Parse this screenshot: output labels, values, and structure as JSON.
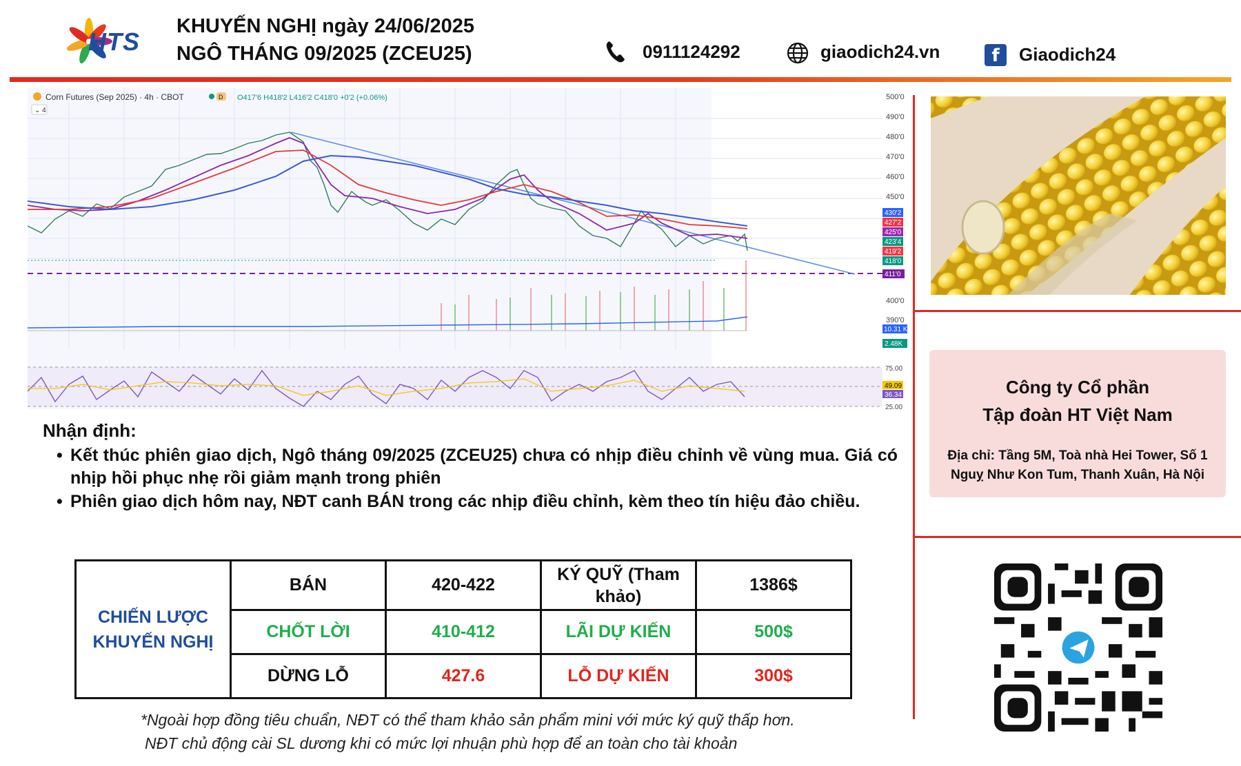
{
  "header": {
    "logo_text": "HTS",
    "title_line1": "KHUYẾN NGHỊ ngày 24/06/2025",
    "title_line2": "NGÔ THÁNG 09/2025 (ZCEU25)",
    "phone": "0911124292",
    "website": "giaodich24.vn",
    "facebook": "Giaodich24",
    "icons": [
      "phone-icon",
      "globe-icon",
      "facebook-icon"
    ]
  },
  "chart": {
    "symbol_label": "Corn Futures (Sep 2025) · 4h · CBOT",
    "ohlc_text": "O417'6 H418'2 L416'2 C418'0 +0'2 (+0.06%)",
    "price_axis_ticks": [
      "500'0",
      "490'0",
      "480'0",
      "470'0",
      "460'0",
      "450'0",
      "400'0",
      "390'0"
    ],
    "price_badges": [
      {
        "text": "430'2",
        "color": "#2962ff"
      },
      {
        "text": "427'2",
        "color": "#f23645"
      },
      {
        "text": "425'0",
        "color": "#9c27b0"
      },
      {
        "text": "423'4",
        "color": "#089981"
      },
      {
        "text": "419'2",
        "color": "#f23645"
      },
      {
        "text": "418'0",
        "color": "#089981"
      },
      {
        "text": "411'0",
        "color": "#7b1fa2"
      }
    ],
    "volume_badges": [
      {
        "text": "10.31 K",
        "color": "#2962ff"
      },
      {
        "text": "2.48K",
        "color": "#089981"
      }
    ],
    "rsi_axis_ticks": [
      "75.00",
      "25.00"
    ],
    "rsi_badges": [
      {
        "text": "49.09",
        "color": "#f7c600"
      },
      {
        "text": "36.34",
        "color": "#7e57c2"
      }
    ]
  },
  "analysis": {
    "title": "Nhận định:",
    "bullets": [
      "Kết thúc phiên giao dịch, Ngô tháng 09/2025 (ZCEU25) chưa có nhịp điều chỉnh về vùng mua. Giá có nhịp hồi phục nhẹ rồi giảm mạnh trong phiên",
      "Phiên giao dịch hôm nay, NĐT canh BÁN trong các nhịp điều chỉnh, kèm theo tín hiệu đảo chiều."
    ]
  },
  "strategy": {
    "header_cell": "CHIẾN LƯỢC KHUYẾN NGHỊ",
    "rows": [
      {
        "action": "BÁN",
        "price": "420-422",
        "label": "KÝ QUỸ (Tham khảo)",
        "value": "1386$"
      },
      {
        "action": "CHỐT LỜI",
        "price": "410-412",
        "label": "LÃI DỰ KIẾN",
        "value": "500$"
      },
      {
        "action": "DỪNG LỖ",
        "price": "427.6",
        "label": "LỖ DỰ KIẾN",
        "value": "300$"
      }
    ],
    "colors": {
      "blue": "#1f4e9c",
      "green": "#1fae4b",
      "red": "#e0261e"
    }
  },
  "company": {
    "name_line1": "Công ty Cổ phần",
    "name_line2": "Tập đoàn HT Việt Nam",
    "address": "Địa chỉ: Tầng 5M, Toà nhà Hei Tower, Số 1 Nguỵ Như Kon Tum, Thanh Xuân, Hà Nội"
  },
  "notes": {
    "line1": "*Ngoài hợp đồng tiêu chuẩn, NĐT có thể tham khảo sản phẩm mini với mức ký quỹ thấp hơn.",
    "line2": "NĐT chủ động cài SL dương khi có mức lợi nhuận phù hợp để an toàn cho tài khoản"
  }
}
